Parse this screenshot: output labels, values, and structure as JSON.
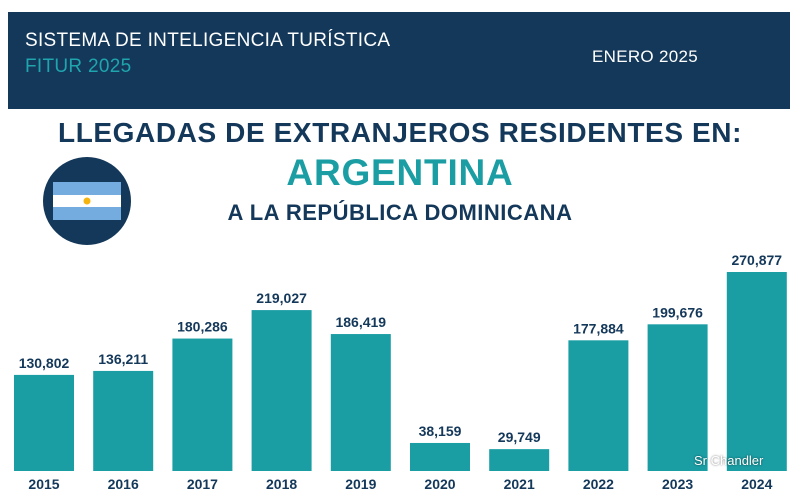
{
  "header": {
    "title": "SISTEMA DE INTELIGENCIA TURÍSTICA",
    "subtitle": "FITUR 2025",
    "date": "ENERO 2025"
  },
  "headline": {
    "line1": "LLEGADAS DE EXTRANJEROS RESIDENTES EN:",
    "country": "ARGENTINA",
    "line3": "A LA REPÚBLICA DOMINICANA"
  },
  "colors": {
    "navy": "#14385a",
    "teal": "#1a9ea4",
    "bar": "#1a9ea4",
    "flag_blue": "#74acdf",
    "flag_sun": "#f6b40e"
  },
  "flag_icon": "argentina-flag-icon",
  "chart_data": {
    "type": "bar",
    "categories": [
      "2015",
      "2016",
      "2017",
      "2018",
      "2019",
      "2020",
      "2021",
      "2022",
      "2023",
      "2024"
    ],
    "values": [
      130802,
      136211,
      180286,
      219027,
      186419,
      38159,
      29749,
      177884,
      199676,
      270877
    ],
    "value_labels": [
      "130,802",
      "136,211",
      "180,286",
      "219,027",
      "186,419",
      "38,159",
      "29,749",
      "177,884",
      "199,676",
      "270,877"
    ],
    "ylim": [
      0,
      270877
    ],
    "grid": false,
    "legend": "none"
  },
  "watermark": "Sr Chandler"
}
